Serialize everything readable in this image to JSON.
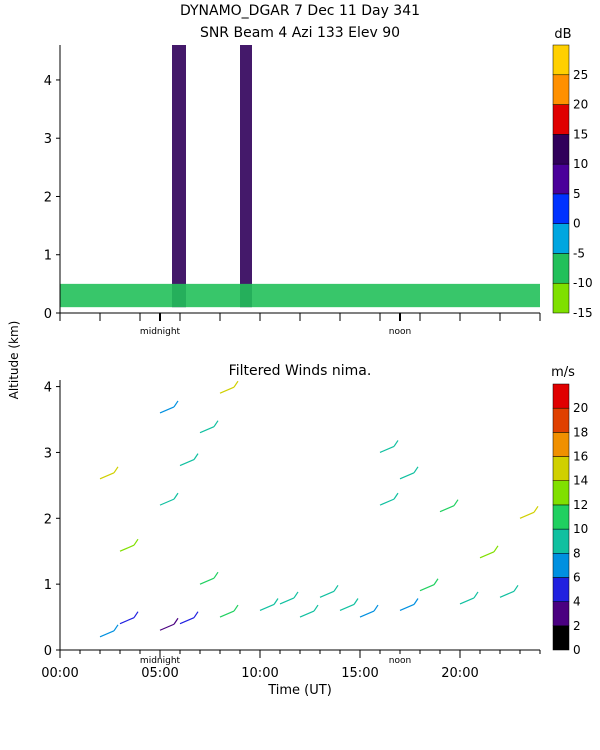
{
  "chart_data": [
    {
      "type": "heatmap",
      "title": "DYNAMO_DGAR    7 Dec 11 Day 341",
      "subtitle": "SNR Beam 4 Azi 133 Elev 90",
      "ylabel": "Altitude (km)",
      "y_ticks": [
        "0",
        "1",
        "2",
        "3",
        "4"
      ],
      "ylim": [
        0,
        4.6
      ],
      "xlim": [
        0,
        24
      ],
      "x_markers": [
        {
          "label": "midnight",
          "x": 5.0
        },
        {
          "label": "noon",
          "x": 17.0
        }
      ],
      "colorbar": {
        "unit": "dB",
        "range": [
          -15,
          30
        ],
        "ticks": [
          "25",
          "20",
          "15",
          "10",
          "5",
          "0",
          "-5",
          "-10",
          "-15"
        ],
        "colors": [
          "#7fe000",
          "#22c05a",
          "#00a6e0",
          "#0032ff",
          "#4a009a",
          "#30005a",
          "#e00000",
          "#ff9000",
          "#ffd000"
        ]
      },
      "features": [
        {
          "x_start": 5.6,
          "x_end": 6.3,
          "alt_top": 4.6,
          "snr": 10
        },
        {
          "x_start": 9.0,
          "x_end": 9.6,
          "alt_top": 4.6,
          "snr": 10
        },
        {
          "x_start": 0.0,
          "x_end": 24.0,
          "alt_top": 0.5,
          "snr": -10
        }
      ]
    },
    {
      "type": "scatter",
      "title": "Filtered Winds nima.",
      "xlabel": "Time (UT)",
      "ylabel": "Altitude (km)",
      "x_ticks": [
        "00:00",
        "05:00",
        "10:00",
        "15:00",
        "20:00"
      ],
      "y_ticks": [
        "0",
        "1",
        "2",
        "3",
        "4"
      ],
      "xlim": [
        0,
        24
      ],
      "ylim": [
        0,
        4.1
      ],
      "x_markers": [
        {
          "label": "midnight",
          "x": 5.0
        },
        {
          "label": "noon",
          "x": 17.0
        }
      ],
      "colorbar": {
        "unit": "m/s",
        "range": [
          0,
          22
        ],
        "ticks": [
          "20",
          "18",
          "16",
          "14",
          "12",
          "10",
          "8",
          "6",
          "4",
          "2",
          "0"
        ],
        "colors": [
          "#000000",
          "#4a0080",
          "#2020e0",
          "#0090e0",
          "#10c0a0",
          "#20d060",
          "#80e000",
          "#d0d000",
          "#f09000",
          "#e04000",
          "#e00000"
        ]
      },
      "series": [
        {
          "x": [
            2,
            2,
            3,
            3,
            5,
            5,
            5,
            6,
            6,
            7,
            7,
            8,
            8,
            10,
            11,
            12,
            13,
            14,
            15,
            16,
            16,
            17,
            17,
            18,
            19,
            20,
            21,
            22,
            23
          ],
          "y": [
            0.2,
            2.6,
            0.4,
            1.5,
            0.3,
            2.2,
            3.6,
            0.4,
            2.8,
            1.0,
            3.3,
            0.5,
            3.9,
            0.6,
            0.7,
            0.5,
            0.8,
            0.6,
            0.5,
            2.2,
            3.0,
            0.6,
            2.6,
            0.9,
            2.1,
            0.7,
            1.4,
            0.8,
            2.0
          ],
          "speed": [
            6,
            14,
            4,
            12,
            3,
            8,
            6,
            4,
            8,
            10,
            9,
            10,
            14,
            8,
            9,
            8,
            9,
            8,
            7,
            9,
            8,
            7,
            9,
            10,
            10,
            8,
            12,
            9,
            15
          ]
        }
      ]
    }
  ]
}
